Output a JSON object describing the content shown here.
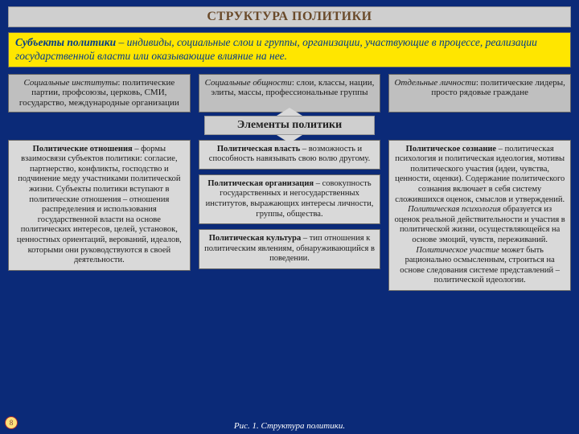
{
  "colors": {
    "slide_bg": "#0b2a78",
    "title_bg": "#cfcfcf",
    "title_text": "#6a4a2a",
    "sub_bg": "#ffe600",
    "sub_text": "#003a8c",
    "topbox_bg": "#bfbfbf",
    "topbox_text": "#1a1a1a",
    "elements_bg": "#cfcfcf",
    "elements_text": "#222",
    "content_bg": "#d9d9d9",
    "content_text": "#1a1a1a",
    "caption_text": "#ffffff",
    "page_bg": "#ffe27a",
    "page_border": "#b03030",
    "page_text": "#7a3a3a",
    "arrow_color": "#d9d9d9"
  },
  "title": "СТРУКТУРА ПОЛИТИКИ",
  "subtitle_lead": "Субъекты политики",
  "subtitle_body": " – индивиды, социальные слои и группы, организации, участвующие в процессе, реализации государственной власти или оказывающие влияние на нее.",
  "top_boxes": [
    {
      "lead": "Социальные институты",
      "body": ": политические партии, профсоюзы, церковь, СМИ, государство, международные организации"
    },
    {
      "lead": "Социальные общности",
      "body": ": слои, классы, нации, элиты, массы, профессиональные группы"
    },
    {
      "lead": "Отдельные личности",
      "body": ": политические лидеры, просто рядовые граждане"
    }
  ],
  "elements_title": "Элементы политики",
  "col1": {
    "lead": "Политические отношения",
    "body": " – формы взаимосвязи субъектов политики: согласие, партнерство, конфликты, господство и подчинение меду участниками политической жизни. Субъекты политики вступают в политические отношения – отношения распределения и использования государственной власти на основе политических интересов, целей, установок, ценностных ориентаций, верований, идеалов, которыми они руководствуются в своей деятельности."
  },
  "col2": [
    {
      "lead": "Политическая власть",
      "body": " – возможность и способность навязывать свою волю другому."
    },
    {
      "lead": "Политическая организация",
      "body": " – совокупность государственных и негосударственных институтов, выражающих интересы личности, группы, общества."
    },
    {
      "lead": "Политическая культура",
      "body": " – тип отношения к политическим явлениям, обнаруживающийся в поведении."
    }
  ],
  "col3": {
    "lead": "Политическое сознание",
    "body1": " – политическая психология и политическая идеология, мотивы политического участия (идеи, чувства, ценности, оценки). Содержание политического сознания включает в себя систему сложившихся оценок, смыслов и утверждений.",
    "ital1": "Политическая психология",
    "body2": " образуется из оценок реальной действительности и участия в политической жизни, осуществляющейся на основе эмоций, чувств, переживаний. ",
    "ital2": "Политическое участие",
    "body3": " может быть рационально осмысленным, строиться на основе следования системе представлений – политической идеологии."
  },
  "caption": "Рис. 1. Структура политики.",
  "page_number": "8"
}
